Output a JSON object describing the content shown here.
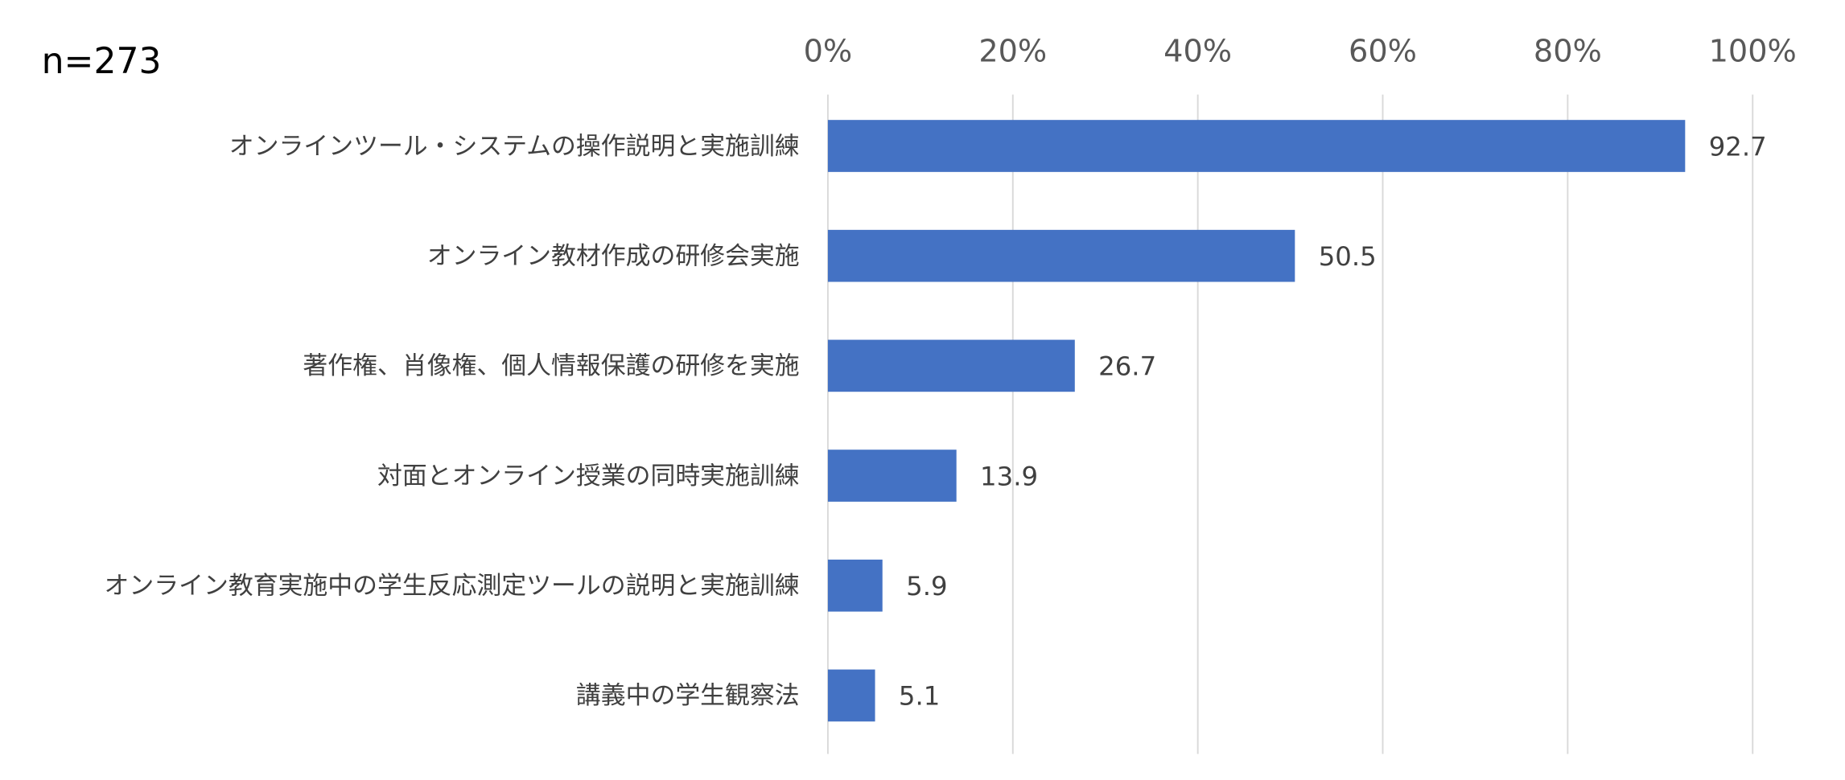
{
  "chart_data": {
    "type": "bar",
    "orientation": "horizontal",
    "sample_label": "n=273",
    "categories": [
      "オンラインツール・システムの操作説明と実施訓練",
      "オンライン教材作成の研修会実施",
      "著作権、肖像権、個人情報保護の研修を実施",
      "対面とオンライン授業の同時実施訓練",
      "オンライン教育実施中の学生反応測定ツールの説明と実施訓練",
      "講義中の学生観察法"
    ],
    "values": [
      92.7,
      50.5,
      26.7,
      13.9,
      5.9,
      5.1
    ],
    "value_labels": [
      "92.7",
      "50.5",
      "26.7",
      "13.9",
      "5.9",
      "5.1"
    ],
    "xlim": [
      0,
      100
    ],
    "x_ticks": [
      "0%",
      "20%",
      "40%",
      "60%",
      "80%",
      "100%"
    ],
    "x_axis_position": "top",
    "grid": true,
    "legend": "none",
    "bar_color": "#4472C4",
    "grid_color": "#D9D9D9"
  }
}
